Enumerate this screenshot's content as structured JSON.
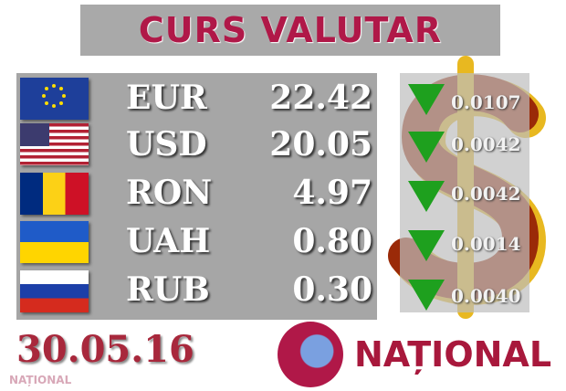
{
  "title": "CURS VALUTAR",
  "rates": [
    {
      "code": "EUR",
      "value": "22.42",
      "change": "0.0107",
      "direction": "down",
      "flag": "eu"
    },
    {
      "code": "USD",
      "value": "20.05",
      "change": "0.0042",
      "direction": "down",
      "flag": "us"
    },
    {
      "code": "RON",
      "value": "4.97",
      "change": "0.0042",
      "direction": "down",
      "flag": "ro"
    },
    {
      "code": "UAH",
      "value": "0.80",
      "change": "0.0014",
      "direction": "down",
      "flag": "ua"
    },
    {
      "code": "RUB",
      "value": "0.30",
      "change": "0.0040",
      "direction": "down",
      "flag": "ru"
    }
  ],
  "date": "30.05.16",
  "logo": "NAȚIONAL",
  "watermark": "NAȚIONAL",
  "colors": {
    "title": "#b01848",
    "down": "#1ea01e"
  }
}
